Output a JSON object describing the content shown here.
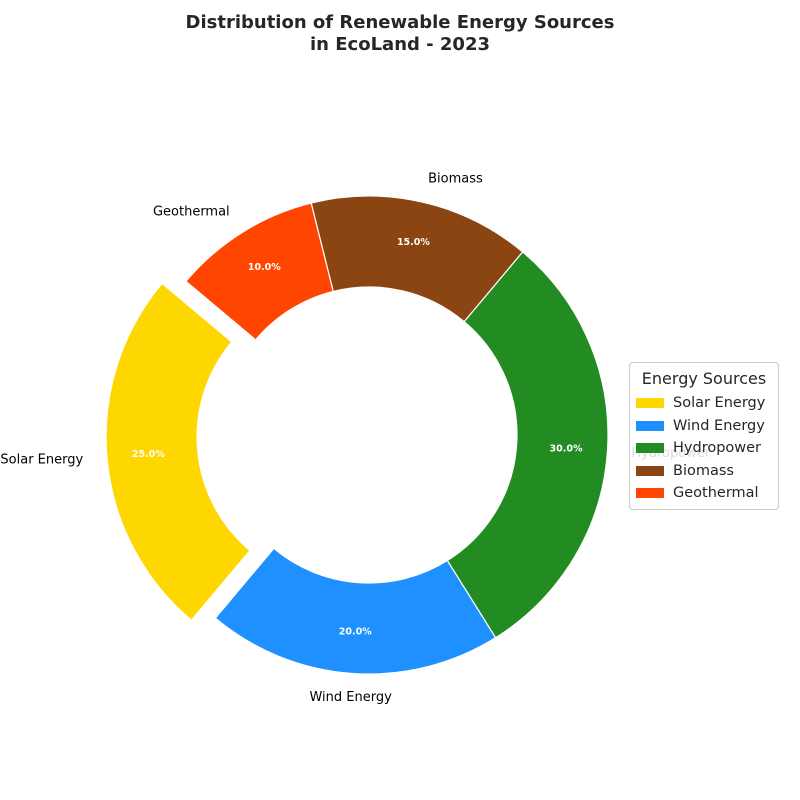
{
  "chart_data": {
    "type": "pie",
    "title": "Distribution of Renewable Energy Sources\nin EcoLand - 2023",
    "categories": [
      "Solar Energy",
      "Wind Energy",
      "Hydropower",
      "Biomass",
      "Geothermal"
    ],
    "values": [
      25.0,
      20.0,
      30.0,
      15.0,
      10.0
    ],
    "percent_labels": [
      "25.0%",
      "20.0%",
      "30.0%",
      "15.0%",
      "10.0%"
    ],
    "colors": [
      "#FFD700",
      "#1E90FF",
      "#228B22",
      "#8B4513",
      "#FF4500"
    ],
    "donut": true,
    "exploded": [
      "Solar Energy"
    ],
    "legend": {
      "title": "Energy Sources",
      "placement": "right",
      "entries": [
        "Solar Energy",
        "Wind Energy",
        "Hydropower",
        "Biomass",
        "Geothermal"
      ]
    }
  }
}
